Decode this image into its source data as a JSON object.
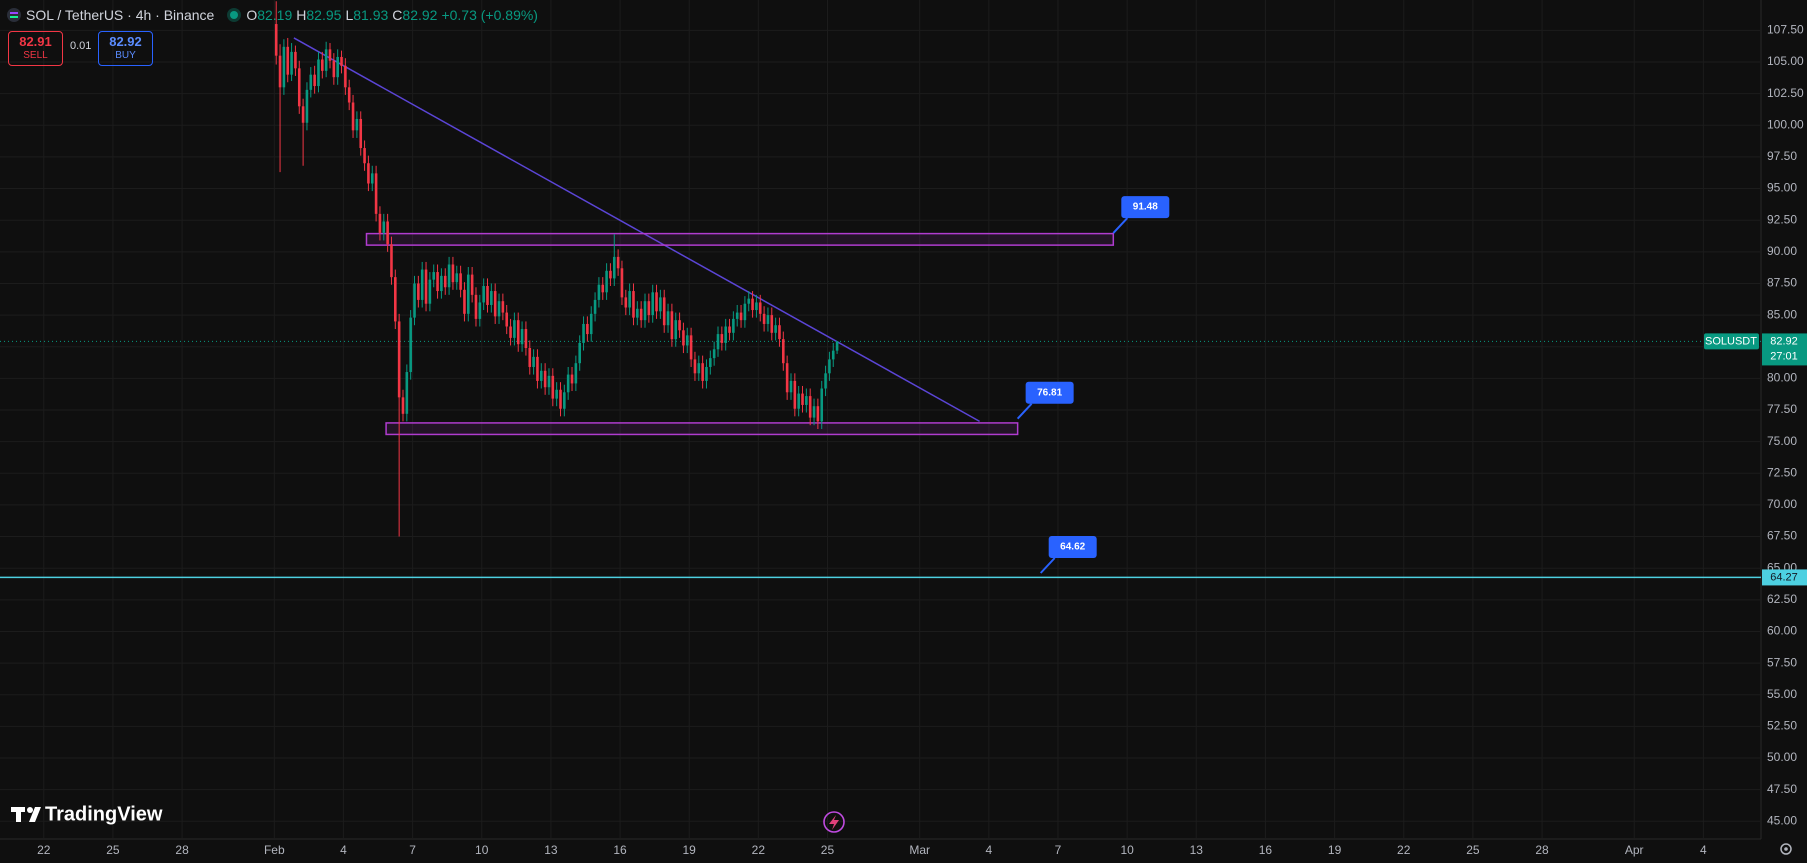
{
  "header": {
    "symbol": "SOL / TetherUS · 4h · Binance",
    "o": "O",
    "h": "H",
    "l": "L",
    "c": "C",
    "change": "+0.73 (+0.89%)",
    "sell": "82.91",
    "sell_label": "SELL",
    "spread": "0.01",
    "buy": "82.92",
    "buy_label": "BUY"
  },
  "branding": "TradingView",
  "chart_data": {
    "type": "candlestick",
    "open": [
      108,
      105.5,
      103,
      106.2,
      104,
      105.8,
      104.5,
      101.5,
      100.2,
      102.8,
      104,
      103.1,
      105.2,
      104.3,
      106,
      105.1,
      103.8,
      105.4,
      104.7,
      103,
      101.8,
      99.6,
      100.5,
      98.2,
      97,
      95.4,
      96.2,
      93,
      91.5,
      92.4,
      90.6,
      88,
      84.5,
      78.5,
      77.2,
      80.5,
      84.8,
      87.5,
      86.2,
      88.6,
      85.9,
      87.8,
      88.4,
      86.9,
      88.1,
      87.2,
      89,
      87.6,
      88.3,
      87,
      85.1,
      88.2,
      86.6,
      84.7,
      86,
      87.3,
      85.8,
      86.9,
      84.9,
      86.1,
      85.2,
      84.1,
      83.2,
      84.6,
      82.7,
      83.9,
      82.4,
      80.9,
      81.7,
      79.8,
      80.6,
      79.3,
      80.2,
      78.4,
      79.1,
      77.6,
      78.9,
      80.3,
      79.6,
      81.2,
      82.8,
      84.3,
      83.5,
      85.1,
      86.2,
      87.4,
      86.8,
      88.5,
      87.9,
      89.6,
      88.7,
      86.4,
      85.6,
      86.9,
      84.8,
      85.5,
      84.6,
      86.1,
      85,
      86.8,
      85.3,
      86.4,
      84.2,
      85.3,
      83.1,
      84.6,
      83.8,
      82.6,
      83.4,
      81.5,
      80.4,
      81.2,
      79.8,
      80.9,
      81.6,
      82.3,
      83.5,
      82.8,
      84.1,
      83.6,
      84.7,
      85.2,
      84.6,
      85.9,
      86.3,
      85.4,
      86,
      85.1,
      84.3,
      85,
      83.6,
      84.2,
      83.1,
      81.2,
      78.9,
      79.8,
      77.6,
      78.8,
      77.9,
      78.6,
      76.9,
      77.8,
      76.6,
      79.2,
      80.4,
      81.5,
      82.19
    ],
    "high": [
      109.8,
      106.4,
      106.8,
      106.9,
      106.5,
      106.3,
      105.1,
      102.1,
      103.4,
      104.6,
      104.7,
      105.8,
      105.8,
      106.6,
      106.5,
      105.7,
      106,
      105.9,
      105.3,
      103.6,
      102.4,
      101.1,
      101.1,
      98.8,
      97.6,
      96.8,
      96.8,
      93.6,
      93,
      93,
      91.2,
      88.6,
      85.1,
      79.1,
      81.1,
      85.4,
      88.1,
      88.1,
      89.2,
      89.2,
      88.4,
      89,
      89,
      88.7,
      88.7,
      89.6,
      89.6,
      88.9,
      88.9,
      87.6,
      88.8,
      88.8,
      87.2,
      86.6,
      87.9,
      87.9,
      87.5,
      87.5,
      86.7,
      86.7,
      85.8,
      84.7,
      85.2,
      85.2,
      84.5,
      84.5,
      83,
      82.3,
      82.3,
      81.2,
      81.2,
      80.8,
      80.8,
      79.7,
      79.7,
      79.5,
      80.9,
      80.9,
      81.8,
      83.4,
      84.9,
      84.9,
      85.7,
      86.8,
      88,
      88,
      89.1,
      89.1,
      91.4,
      90.2,
      89.3,
      87,
      87.5,
      87.5,
      86.1,
      86.1,
      86.7,
      86.7,
      87.4,
      87.4,
      87,
      87,
      85.9,
      85.9,
      85.2,
      85.2,
      84.4,
      84,
      84,
      82.1,
      81.8,
      81.8,
      81.5,
      82.2,
      82.9,
      84.1,
      84.1,
      84.7,
      84.7,
      85.3,
      85.8,
      85.8,
      86.5,
      86.9,
      86.9,
      86.6,
      86.6,
      85.7,
      85.6,
      85.6,
      84.8,
      84.8,
      83.7,
      81.8,
      80.4,
      80.4,
      79.4,
      79.4,
      79.2,
      79.2,
      78.4,
      78.4,
      79.8,
      81,
      82.1,
      82.8,
      82.95
    ],
    "low": [
      104.8,
      96.3,
      102.4,
      103.4,
      103.5,
      103.9,
      100.9,
      96.8,
      99.6,
      102.2,
      102.5,
      102.6,
      103.7,
      103.8,
      104.5,
      103.2,
      103.2,
      104.1,
      102.4,
      101.2,
      99,
      99,
      97.6,
      96.4,
      94.8,
      94.8,
      92.4,
      90.9,
      90.9,
      90,
      87.4,
      83.9,
      67.5,
      76.6,
      76.6,
      79.9,
      84.2,
      85.6,
      85.6,
      85.3,
      85.3,
      87.2,
      86.3,
      86.3,
      86.6,
      86.6,
      87,
      87,
      86.4,
      84.5,
      84.5,
      86,
      84.1,
      84.1,
      85.4,
      85.2,
      85.2,
      84.3,
      84.3,
      84.6,
      83.5,
      82.6,
      82.6,
      82.1,
      82.1,
      81.8,
      80.3,
      80.3,
      79.2,
      79.2,
      78.7,
      78.7,
      77.8,
      77.8,
      77,
      77,
      78.3,
      79,
      79,
      80.6,
      82.2,
      82.9,
      82.9,
      84.5,
      85.6,
      86.2,
      86.2,
      87.3,
      87.3,
      88.1,
      85.8,
      85,
      85,
      84.2,
      84.2,
      84,
      84,
      84.4,
      84.4,
      84.7,
      84.7,
      83.6,
      83.6,
      82.5,
      82.5,
      83.2,
      82,
      82,
      80.9,
      79.8,
      79.8,
      79.2,
      79.2,
      80.3,
      81,
      81.7,
      82.2,
      82.2,
      83,
      83,
      84.1,
      84,
      84,
      85.3,
      84.8,
      84.8,
      84.5,
      83.7,
      83.7,
      83,
      83,
      82.5,
      80.6,
      78.3,
      78.3,
      77,
      77,
      77.3,
      77.3,
      76.3,
      76.3,
      76,
      76,
      78.6,
      79.8,
      80.9,
      81.93
    ],
    "close": [
      105.5,
      103,
      106.2,
      104,
      105.8,
      104.5,
      101.5,
      100.2,
      102.8,
      104,
      103.1,
      105.2,
      104.3,
      106,
      105.1,
      103.8,
      105.4,
      104.7,
      103,
      101.8,
      99.6,
      100.5,
      98.2,
      97,
      95.4,
      96.2,
      93,
      91.5,
      92.4,
      90.6,
      88,
      84.5,
      78.5,
      77.2,
      80.5,
      84.8,
      87.5,
      86.2,
      88.6,
      85.9,
      87.8,
      88.4,
      86.9,
      88.1,
      87.2,
      89,
      87.6,
      88.3,
      87,
      85.1,
      88.2,
      86.6,
      84.7,
      86,
      87.3,
      85.8,
      86.9,
      84.9,
      86.1,
      85.2,
      84.1,
      83.2,
      84.6,
      82.7,
      83.9,
      82.4,
      80.9,
      81.7,
      79.8,
      80.6,
      79.3,
      80.2,
      78.4,
      79.1,
      77.6,
      78.9,
      80.3,
      79.6,
      81.2,
      82.8,
      84.3,
      83.5,
      85.1,
      86.2,
      87.4,
      86.8,
      88.5,
      87.9,
      89.6,
      88.7,
      86.4,
      85.6,
      86.9,
      84.8,
      85.5,
      84.6,
      86.1,
      85,
      86.8,
      85.3,
      86.4,
      84.2,
      85.3,
      83.1,
      84.6,
      83.8,
      82.6,
      83.4,
      81.5,
      80.4,
      81.2,
      79.8,
      80.9,
      81.6,
      82.3,
      83.5,
      82.8,
      84.1,
      83.6,
      84.7,
      85.2,
      84.6,
      85.9,
      86.3,
      85.4,
      86,
      85.1,
      84.3,
      85,
      83.6,
      84.2,
      83.1,
      81.2,
      78.9,
      79.8,
      77.6,
      78.8,
      77.9,
      78.6,
      76.9,
      77.8,
      76.6,
      79.2,
      80.4,
      81.5,
      82.19,
      82.92
    ],
    "up_color": "#089981",
    "down_color": "#f23645",
    "xlim": [
      -71.4,
      387
    ],
    "xticks": [
      {
        "value": -60,
        "label": "22"
      },
      {
        "value": -42,
        "label": "25"
      },
      {
        "value": -24,
        "label": "28"
      },
      {
        "value": 0,
        "label": "Feb"
      },
      {
        "value": 18,
        "label": "4"
      },
      {
        "value": 36,
        "label": "7"
      },
      {
        "value": 54,
        "label": "10"
      },
      {
        "value": 72,
        "label": "13"
      },
      {
        "value": 90,
        "label": "16"
      },
      {
        "value": 108,
        "label": "19"
      },
      {
        "value": 126,
        "label": "22"
      },
      {
        "value": 144,
        "label": "25"
      },
      {
        "value": 168,
        "label": "Mar"
      },
      {
        "value": 186,
        "label": "4"
      },
      {
        "value": 204,
        "label": "7"
      },
      {
        "value": 222,
        "label": "10"
      },
      {
        "value": 240,
        "label": "13"
      },
      {
        "value": 258,
        "label": "16"
      },
      {
        "value": 276,
        "label": "19"
      },
      {
        "value": 294,
        "label": "22"
      },
      {
        "value": 312,
        "label": "25"
      },
      {
        "value": 330,
        "label": "28"
      },
      {
        "value": 354,
        "label": "Apr"
      },
      {
        "value": 372,
        "label": "4"
      }
    ],
    "ylim": [
      43.6,
      109.9
    ],
    "yticks": [
      {
        "value": 45,
        "label": "45.00"
      },
      {
        "value": 47.5,
        "label": "47.50"
      },
      {
        "value": 50,
        "label": "50.00"
      },
      {
        "value": 52.5,
        "label": "52.50"
      },
      {
        "value": 55,
        "label": "55.00"
      },
      {
        "value": 57.5,
        "label": "57.50"
      },
      {
        "value": 60,
        "label": "60.00"
      },
      {
        "value": 62.5,
        "label": "62.50"
      },
      {
        "value": 65,
        "label": "65.00"
      },
      {
        "value": 67.5,
        "label": "67.50"
      },
      {
        "value": 70,
        "label": "70.00"
      },
      {
        "value": 72.5,
        "label": "72.50"
      },
      {
        "value": 75,
        "label": "75.00"
      },
      {
        "value": 77.5,
        "label": "77.50"
      },
      {
        "value": 80,
        "label": "80.00"
      },
      {
        "value": 82.5,
        "label": "82.50"
      },
      {
        "value": 85,
        "label": "85.00"
      },
      {
        "value": 87.5,
        "label": "87.50"
      },
      {
        "value": 90,
        "label": "90.00"
      },
      {
        "value": 92.5,
        "label": "92.50"
      },
      {
        "value": 95,
        "label": "95.00"
      },
      {
        "value": 97.5,
        "label": "97.50"
      },
      {
        "value": 100,
        "label": "100.00"
      },
      {
        "value": 102.5,
        "label": "102.50"
      },
      {
        "value": 105,
        "label": "105.00"
      },
      {
        "value": 107.5,
        "label": "107.50"
      }
    ],
    "grid": true,
    "symbol_tag": "SOLUSDT",
    "countdown": "27:01",
    "trendline": {
      "x": [
        5.1,
        183.6
      ],
      "y": [
        106.9,
        76.6
      ],
      "color": "#5b45d6"
    },
    "zones": [
      {
        "x": [
          24,
          218.4
        ],
        "y": [
          90.53,
          91.44
        ],
        "color": "#b03ccf"
      },
      {
        "x": [
          29.1,
          193.5
        ],
        "y": [
          75.57,
          76.48
        ],
        "color": "#b03ccf"
      }
    ],
    "callouts": [
      {
        "x": 218.4,
        "price": 91.48
      },
      {
        "x": 193.5,
        "price": 76.81
      },
      {
        "x": 199.5,
        "price": 64.62
      }
    ],
    "callout_color": "#2962ff",
    "hline": {
      "value": 64.27,
      "color": "#4dd0e1"
    }
  }
}
